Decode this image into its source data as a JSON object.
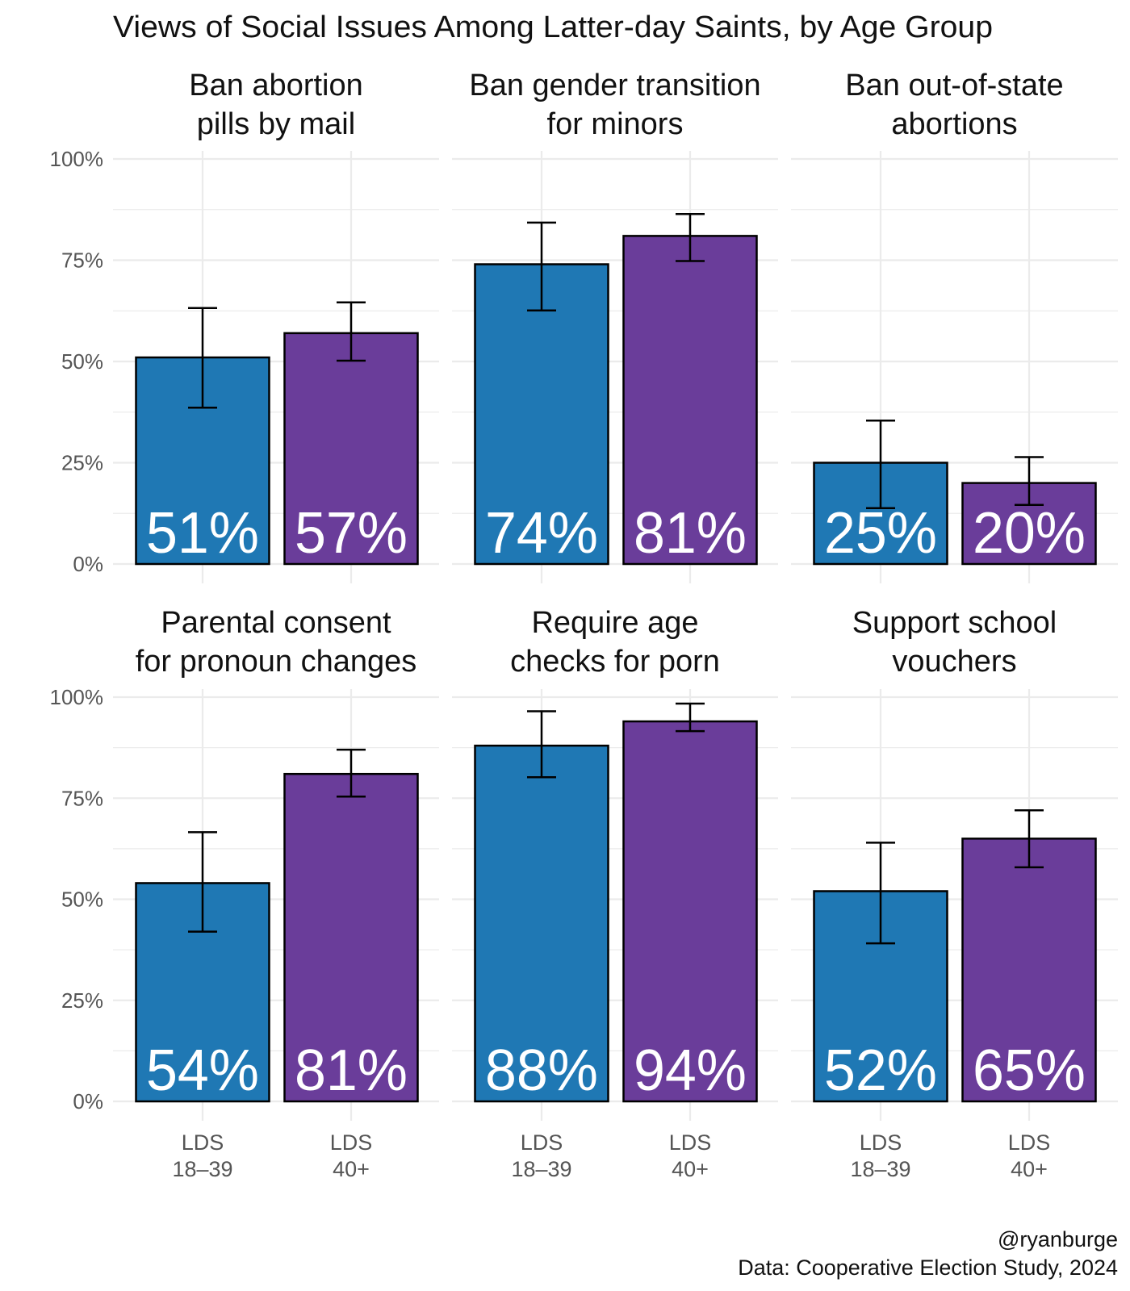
{
  "chart_data": {
    "type": "bar",
    "title": "Views of Social Issues Among Latter-day Saints, by Age Group",
    "xlabel": "",
    "ylabel": "",
    "ylim": [
      0,
      100
    ],
    "y_ticks": [
      "0%",
      "25%",
      "50%",
      "75%",
      "100%"
    ],
    "grid": true,
    "categories": [
      "LDS 18–39",
      "LDS 40+"
    ],
    "category_lines": [
      [
        "LDS",
        "18–39"
      ],
      [
        "LDS",
        "40+"
      ]
    ],
    "colors": {
      "LDS 18–39": "#1f78b4",
      "LDS 40+": "#6a3d9a"
    },
    "panels": [
      {
        "title": [
          "Ban abortion",
          "pills by mail"
        ],
        "values": [
          51,
          57
        ],
        "labels": [
          "51%",
          "57%"
        ],
        "ci_low": [
          38.6,
          50.2
        ],
        "ci_high": [
          63.2,
          64.6
        ]
      },
      {
        "title": [
          "Ban gender transition",
          "for minors"
        ],
        "values": [
          74,
          81
        ],
        "labels": [
          "74%",
          "81%"
        ],
        "ci_low": [
          62.6,
          74.8
        ],
        "ci_high": [
          84.3,
          86.4
        ]
      },
      {
        "title": [
          "Ban out-of-state",
          "abortions"
        ],
        "values": [
          25,
          20
        ],
        "labels": [
          "25%",
          "20%"
        ],
        "ci_low": [
          13.8,
          14.6
        ],
        "ci_high": [
          35.4,
          26.4
        ]
      },
      {
        "title": [
          "Parental consent",
          "for pronoun changes"
        ],
        "values": [
          54,
          81
        ],
        "labels": [
          "54%",
          "81%"
        ],
        "ci_low": [
          42.0,
          75.4
        ],
        "ci_high": [
          66.6,
          87.0
        ]
      },
      {
        "title": [
          "Require age",
          "checks for porn"
        ],
        "values": [
          88,
          94
        ],
        "labels": [
          "88%",
          "94%"
        ],
        "ci_low": [
          80.2,
          91.6
        ],
        "ci_high": [
          96.5,
          98.4
        ]
      },
      {
        "title": [
          "Support school",
          "vouchers"
        ],
        "values": [
          52,
          65
        ],
        "labels": [
          "52%",
          "65%"
        ],
        "ci_low": [
          39.1,
          57.9
        ],
        "ci_high": [
          64.0,
          72.0
        ]
      }
    ],
    "caption": [
      "@ryanburge",
      "Data: Cooperative Election Study, 2024"
    ]
  }
}
